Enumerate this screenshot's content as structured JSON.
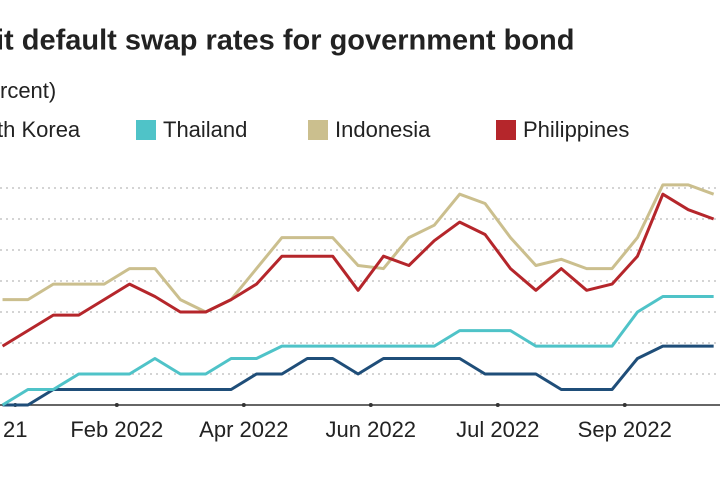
{
  "chart_data": {
    "type": "line",
    "title": "it default swap rates for government bond",
    "subtitle": "rcent)",
    "x": [
      -0.9,
      -0.7,
      -0.5,
      -0.3,
      -0.1,
      0.1,
      0.3,
      0.5,
      0.7,
      0.9,
      1.1,
      1.3,
      1.5,
      1.7,
      1.9,
      2.1,
      2.3,
      2.5,
      2.7,
      2.9,
      3.1,
      3.3,
      3.5,
      3.7,
      3.9,
      4.1,
      4.3,
      4.5,
      4.7
    ],
    "xlim": [
      -0.92,
      4.75
    ],
    "xticks": [
      {
        "value": -0.8,
        "label": "21"
      },
      {
        "value": 0,
        "label": "Feb 2022"
      },
      {
        "value": 1,
        "label": "Apr 2022"
      },
      {
        "value": 2,
        "label": "Jun 2022"
      },
      {
        "value": 3,
        "label": "Jul 2022"
      },
      {
        "value": 4,
        "label": "Sep 2022"
      }
    ],
    "ylim": [
      0,
      7.5
    ],
    "yticks": [
      1,
      2,
      3,
      4,
      5,
      6,
      7
    ],
    "grid": true,
    "series": [
      {
        "name": "th Korea",
        "color": "#1f4e79",
        "values": [
          0,
          0,
          0.5,
          0.5,
          0.5,
          0.5,
          0.5,
          0.5,
          0.5,
          0.5,
          1.0,
          1.0,
          1.5,
          1.5,
          1.0,
          1.5,
          1.5,
          1.5,
          1.5,
          1.0,
          1.0,
          1.0,
          0.5,
          0.5,
          0.5,
          1.5,
          1.9,
          1.9,
          1.9
        ]
      },
      {
        "name": "Thailand",
        "color": "#4fc3c8",
        "values": [
          0,
          0.5,
          0.5,
          1.0,
          1.0,
          1.0,
          1.5,
          1.0,
          1.0,
          1.5,
          1.5,
          1.9,
          1.9,
          1.9,
          1.9,
          1.9,
          1.9,
          1.9,
          2.4,
          2.4,
          2.4,
          1.9,
          1.9,
          1.9,
          1.9,
          3.0,
          3.5,
          3.5,
          3.5
        ]
      },
      {
        "name": "Indonesia",
        "color": "#cbbf8e",
        "values": [
          3.4,
          3.4,
          3.9,
          3.9,
          3.9,
          4.4,
          4.4,
          3.4,
          3.0,
          3.4,
          4.4,
          5.4,
          5.4,
          5.4,
          4.5,
          4.4,
          5.4,
          5.8,
          6.8,
          6.5,
          5.4,
          4.5,
          4.7,
          4.4,
          4.4,
          5.4,
          7.1,
          7.1,
          6.8
        ]
      },
      {
        "name": "Philippines",
        "color": "#b5262b",
        "values": [
          1.9,
          2.4,
          2.9,
          2.9,
          3.4,
          3.9,
          3.5,
          3.0,
          3.0,
          3.4,
          3.9,
          4.8,
          4.8,
          4.8,
          3.7,
          4.8,
          4.5,
          5.3,
          5.9,
          5.5,
          4.4,
          3.7,
          4.4,
          3.7,
          3.9,
          4.8,
          6.8,
          6.3,
          6.0
        ]
      }
    ]
  }
}
